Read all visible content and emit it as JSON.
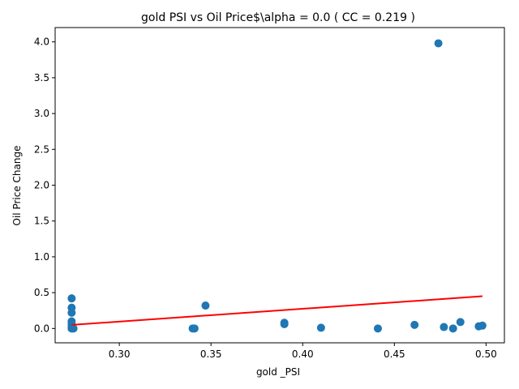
{
  "chart_data": {
    "type": "scatter",
    "title": "gold  PSI vs Oil Price$\\alpha = 0.0 ( CC = 0.219 )",
    "xlabel": "gold _PSI",
    "ylabel": "Oil Price Change",
    "xlim": [
      0.265,
      0.51
    ],
    "ylim": [
      -0.2,
      4.2
    ],
    "xticks": [
      0.3,
      0.35,
      0.4,
      0.45,
      0.5
    ],
    "xtick_labels": [
      "0.30",
      "0.35",
      "0.40",
      "0.45",
      "0.50"
    ],
    "yticks": [
      0.0,
      0.5,
      1.0,
      1.5,
      2.0,
      2.5,
      3.0,
      3.5,
      4.0
    ],
    "ytick_labels": [
      "0.0",
      "0.5",
      "1.0",
      "1.5",
      "2.0",
      "2.5",
      "3.0",
      "3.5",
      "4.0"
    ],
    "grid": false,
    "point_color": "#1f77b4",
    "fit_color": "#ff0000",
    "series": [
      {
        "points": [
          {
            "x": 0.274,
            "y": 0.42
          },
          {
            "x": 0.274,
            "y": 0.29
          },
          {
            "x": 0.274,
            "y": 0.22
          },
          {
            "x": 0.274,
            "y": 0.1
          },
          {
            "x": 0.274,
            "y": 0.06
          },
          {
            "x": 0.274,
            "y": 0.02
          },
          {
            "x": 0.274,
            "y": 0.0
          },
          {
            "x": 0.275,
            "y": 0.0
          },
          {
            "x": 0.34,
            "y": 0.0
          },
          {
            "x": 0.341,
            "y": 0.0
          },
          {
            "x": 0.347,
            "y": 0.32
          },
          {
            "x": 0.39,
            "y": 0.08
          },
          {
            "x": 0.39,
            "y": 0.06
          },
          {
            "x": 0.41,
            "y": 0.01
          },
          {
            "x": 0.441,
            "y": 0.0
          },
          {
            "x": 0.461,
            "y": 0.05
          },
          {
            "x": 0.474,
            "y": 3.98
          },
          {
            "x": 0.477,
            "y": 0.02
          },
          {
            "x": 0.482,
            "y": 0.0
          },
          {
            "x": 0.486,
            "y": 0.09
          },
          {
            "x": 0.496,
            "y": 0.03
          },
          {
            "x": 0.498,
            "y": 0.04
          }
        ]
      }
    ],
    "fit_line": {
      "x": [
        0.274,
        0.498
      ],
      "y": [
        0.05,
        0.45
      ]
    }
  }
}
